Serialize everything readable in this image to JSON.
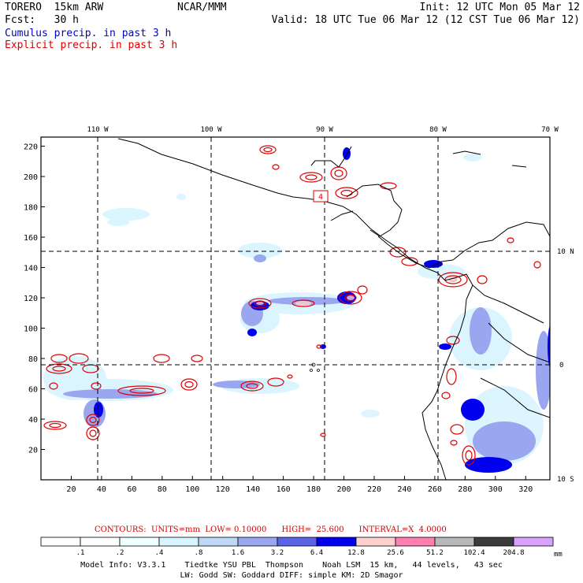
{
  "header": {
    "model": "TORERO  15km ARW",
    "org": "NCAR/MMM",
    "init": "Init: 12 UTC Mon 05 Mar 12",
    "fcst": "Fcst:   30 h",
    "valid": "Valid: 18 UTC Tue 06 Mar 12 (12 CST Tue 06 Mar 12)",
    "cumulus_label": "Cumulus precip. in past 3 h",
    "explicit_label": "Explicit precip. in past 3 h"
  },
  "colors": {
    "cumulus": "#0000cc",
    "explicit": "#dd0000"
  },
  "map": {
    "lon_labels": [
      "110 W",
      "100 W",
      "90 W",
      "80 W",
      "70 W"
    ],
    "lat_labels": [
      "10 N",
      "0",
      "10 S"
    ],
    "x_ticks": [
      "20",
      "40",
      "60",
      "80",
      "100",
      "120",
      "140",
      "160",
      "180",
      "200",
      "220",
      "240",
      "260",
      "280",
      "300",
      "320"
    ],
    "y_ticks": [
      "20",
      "40",
      "60",
      "80",
      "100",
      "120",
      "140",
      "160",
      "180",
      "200",
      "220"
    ],
    "inline_label": "4"
  },
  "contour_info": {
    "text": "CONTOURS:  UNITS=mm  LOW= 0.10000      HIGH=  25.600      INTERVAL=X  4.0000"
  },
  "colorbar": {
    "levels": [
      ".1",
      ".2",
      ".4",
      ".8",
      "1.6",
      "3.2",
      "6.4",
      "12.8",
      "25.6",
      "51.2",
      "102.4",
      "204.8"
    ],
    "colors": [
      "#ffffff",
      "#ffffff",
      "#f0ffff",
      "#d8f4ff",
      "#c0d8f8",
      "#9aa6f0",
      "#5a64e6",
      "#0000ee",
      "#ffd0d0",
      "#ff80b0",
      "#b8b8b8",
      "#3c3c3c",
      "#d8a0ff"
    ],
    "unit": "mm"
  },
  "model_info": {
    "line1": "Model Info: V3.3.1    Tiedtke YSU PBL  Thompson    Noah LSM  15 km,   44 levels,   43 sec",
    "line2": "LW: Godd SW: Goddard DIFF: simple KM: 2D Smagor"
  }
}
